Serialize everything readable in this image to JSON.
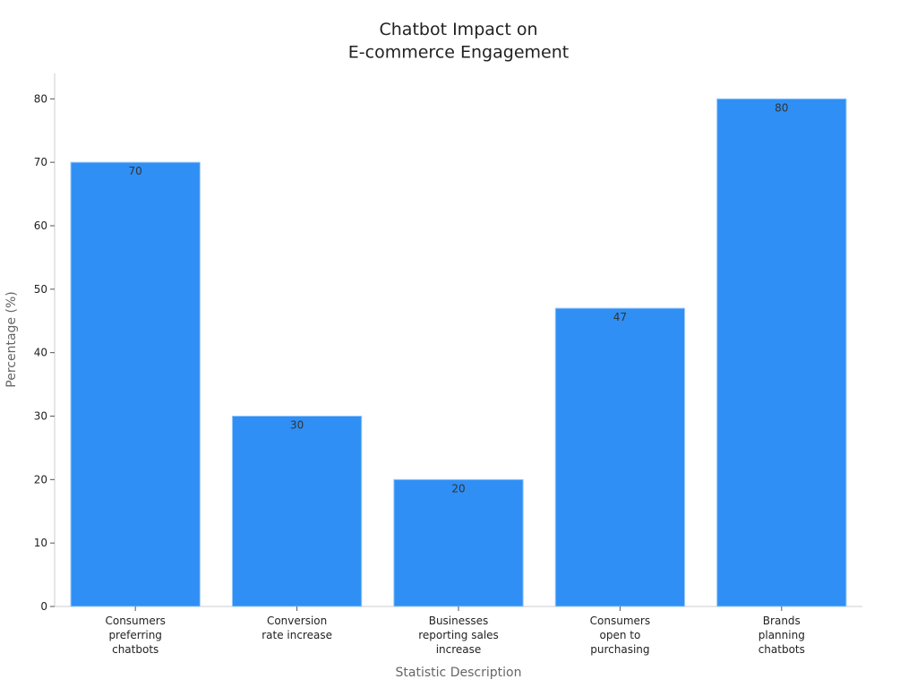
{
  "chart_data": {
    "type": "bar",
    "title": "Chatbot Impact on\nE-commerce Engagement",
    "x_label": "Statistic Description",
    "y_label": "Percentage (%)",
    "categories": [
      "Consumers\npreferring\nchatbots",
      "Conversion\nrate increase",
      "Businesses\nreporting sales\nincrease",
      "Consumers\nopen to\npurchasing",
      "Brands\nplanning\nchatbots"
    ],
    "values": [
      70,
      30,
      20,
      47,
      80
    ],
    "color": "#2f8ff5",
    "ylim": [
      0,
      84
    ],
    "yticks": [
      0,
      10,
      20,
      30,
      40,
      50,
      60,
      70,
      80
    ],
    "grid": false,
    "value_labels_shown": true
  }
}
